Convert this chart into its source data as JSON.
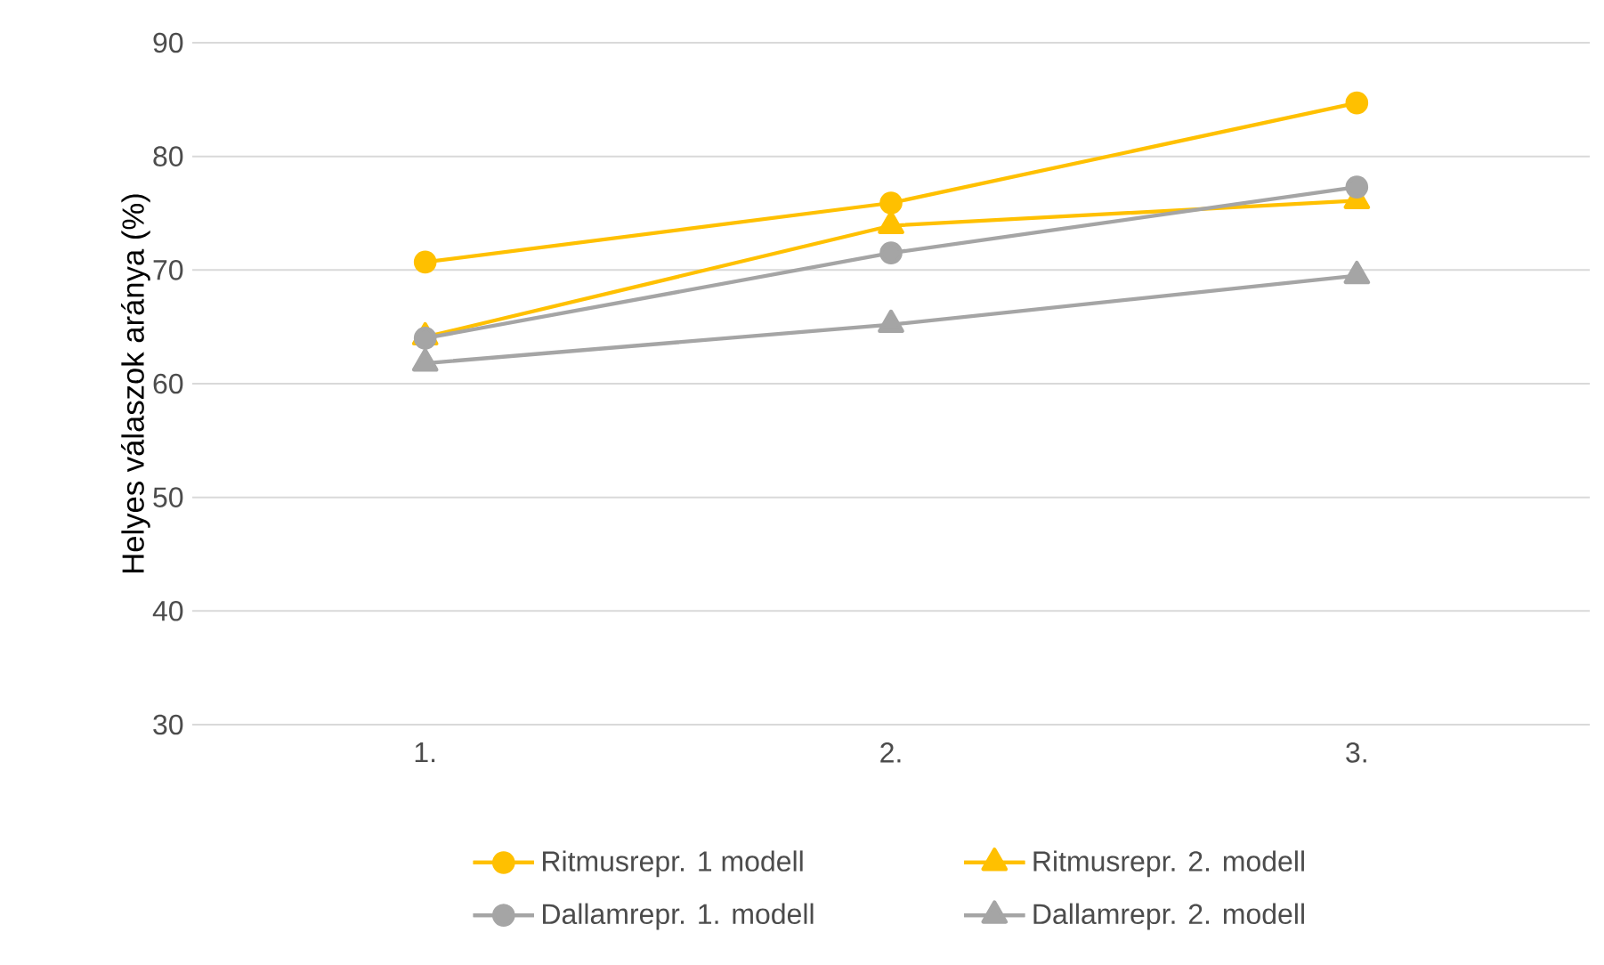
{
  "chart_data": {
    "type": "line",
    "ylabel": "Helyes válaszok aránya (%)",
    "categories": [
      "1.",
      "2.",
      "3."
    ],
    "series": [
      {
        "name": "Ritmusrepr. 1 modell",
        "color": "#ffc000",
        "marker": "circle",
        "values": [
          70.7,
          75.9,
          84.7
        ]
      },
      {
        "name": "Ritmusrepr. 2. modell",
        "color": "#ffc000",
        "marker": "triangle",
        "values": [
          64.1,
          73.9,
          76.1
        ]
      },
      {
        "name": "Dallamrepr. 1. modell",
        "color": "#a5a5a5",
        "marker": "circle",
        "values": [
          64.0,
          71.5,
          77.3
        ]
      },
      {
        "name": "Dallamrepr. 2. modell",
        "color": "#a5a5a5",
        "marker": "triangle",
        "values": [
          61.8,
          65.2,
          69.5
        ]
      }
    ],
    "ylim": [
      30,
      90
    ],
    "yticks": [
      30,
      40,
      50,
      60,
      70,
      80,
      90
    ],
    "grid": "y",
    "legend": "bottom",
    "line_style": "solid"
  }
}
